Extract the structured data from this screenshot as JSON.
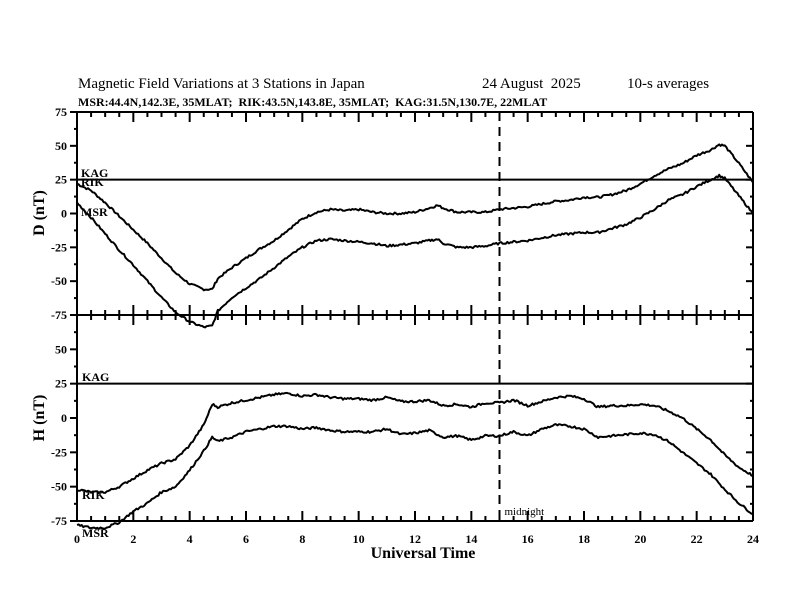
{
  "chart_data": [
    {
      "type": "line",
      "panel": "D",
      "title": "Magnetic Field Variations at 3 Stations in Japan",
      "date": "24 August  2025",
      "averaging": "10-s averages",
      "subtitle": "MSR:44.4N,142.3E, 35MLAT;  RIK:43.5N,143.8E, 35MLAT;  KAG:31.5N,130.7E, 22MLAT",
      "ylabel": "D (nT)",
      "xlabel": "Universal Time",
      "xlim": [
        0,
        24
      ],
      "ylim": [
        -75,
        75
      ],
      "yticks": [
        "75",
        "50",
        "25",
        "0",
        "-25",
        "-50",
        "-75"
      ],
      "yticks_values": [
        75,
        50,
        25,
        0,
        -25,
        -50,
        -75
      ],
      "series": [
        {
          "name": "KAG",
          "x": [
            0,
            24
          ],
          "values": [
            25,
            25
          ]
        },
        {
          "name": "RIK",
          "x": [
            0,
            0.5,
            1,
            1.5,
            2,
            2.5,
            3,
            3.5,
            4,
            4.5,
            4.8,
            5,
            5.5,
            6,
            6.5,
            7,
            7.5,
            8,
            8.5,
            9,
            9.5,
            10,
            10.5,
            11,
            11.5,
            12,
            12.5,
            12.8,
            13,
            13.5,
            14,
            14.5,
            15,
            15.5,
            16,
            16.5,
            17,
            17.5,
            18,
            18.5,
            19,
            19.5,
            20,
            20.5,
            21,
            21.5,
            22,
            22.5,
            22.8,
            23,
            23.5,
            24
          ],
          "values": [
            22,
            17,
            8,
            -2,
            -12,
            -22,
            -33,
            -44,
            -52,
            -56,
            -56,
            -48,
            -40,
            -33,
            -26,
            -20,
            -12,
            -4,
            1,
            3,
            2,
            3,
            1,
            0,
            0,
            1,
            4,
            6,
            4,
            1,
            1,
            1,
            3,
            4,
            5,
            7,
            9,
            10,
            12,
            12,
            14,
            17,
            22,
            28,
            33,
            37,
            43,
            47,
            51,
            50,
            37,
            23
          ]
        },
        {
          "name": "MSR",
          "x": [
            0,
            0.5,
            1,
            1.5,
            2,
            2.5,
            3,
            3.5,
            4,
            4.5,
            4.8,
            5,
            5.5,
            6,
            6.5,
            7,
            7.5,
            8,
            8.5,
            9,
            9.5,
            10,
            10.5,
            11,
            11.5,
            12,
            12.5,
            12.8,
            13,
            13.5,
            14,
            14.5,
            15,
            15.5,
            16,
            16.5,
            17,
            17.5,
            18,
            18.5,
            19,
            19.5,
            20,
            20.5,
            21,
            21.5,
            22,
            22.5,
            22.8,
            23,
            23.5,
            24
          ],
          "values": [
            8,
            -3,
            -15,
            -27,
            -38,
            -50,
            -62,
            -73,
            -80,
            -84,
            -83,
            -72,
            -62,
            -55,
            -48,
            -40,
            -32,
            -25,
            -20,
            -19,
            -20,
            -21,
            -22,
            -24,
            -23,
            -22,
            -20,
            -19,
            -22,
            -25,
            -25,
            -24,
            -22,
            -21,
            -20,
            -18,
            -16,
            -15,
            -14,
            -14,
            -11,
            -8,
            -3,
            3,
            10,
            14,
            20,
            25,
            28,
            26,
            13,
            0
          ]
        }
      ],
      "labels": [
        "KAG",
        "RIK",
        "MSR"
      ],
      "annotations": [
        {
          "type": "vline",
          "x": 15,
          "style": "dashed"
        }
      ]
    },
    {
      "type": "line",
      "panel": "H",
      "ylabel": "H (nT)",
      "xlabel": "Universal Time",
      "xlim": [
        0,
        24
      ],
      "ylim": [
        -75,
        75
      ],
      "xticks": [
        "0",
        "2",
        "4",
        "6",
        "8",
        "10",
        "12",
        "14",
        "16",
        "18",
        "20",
        "22",
        "24"
      ],
      "xticks_values": [
        0,
        2,
        4,
        6,
        8,
        10,
        12,
        14,
        16,
        18,
        20,
        22,
        24
      ],
      "yticks": [
        "50",
        "25",
        "0",
        "-25",
        "-50",
        "-75"
      ],
      "yticks_values": [
        50,
        25,
        0,
        -25,
        -50,
        -75
      ],
      "series": [
        {
          "name": "KAG",
          "x": [
            0,
            24
          ],
          "values": [
            25,
            25
          ]
        },
        {
          "name": "RIK",
          "x": [
            0,
            0.5,
            1,
            1.5,
            2,
            2.5,
            3,
            3.5,
            4,
            4.5,
            4.8,
            5,
            5.5,
            6,
            6.5,
            7,
            7.5,
            8,
            8.5,
            9,
            9.5,
            10,
            10.5,
            11,
            11.5,
            12,
            12.5,
            13,
            13.5,
            14,
            14.5,
            15,
            15.5,
            16,
            16.5,
            17,
            17.5,
            18,
            18.5,
            19,
            19.5,
            20,
            20.5,
            21,
            21.5,
            22,
            22.5,
            23,
            23.5,
            24
          ],
          "values": [
            -52,
            -54,
            -54,
            -50,
            -44,
            -38,
            -33,
            -30,
            -20,
            -5,
            10,
            8,
            11,
            13,
            15,
            17,
            18,
            16,
            17,
            15,
            14,
            14,
            13,
            15,
            12,
            12,
            13,
            9,
            10,
            8,
            11,
            11,
            13,
            9,
            12,
            15,
            16,
            14,
            8,
            9,
            9,
            10,
            9,
            5,
            0,
            -8,
            -16,
            -27,
            -36,
            -42
          ]
        },
        {
          "name": "MSR",
          "x": [
            0,
            0.5,
            1,
            1.5,
            2,
            2.5,
            3,
            3.5,
            4,
            4.5,
            4.8,
            5,
            5.5,
            6,
            6.5,
            7,
            7.5,
            8,
            8.5,
            9,
            9.5,
            10,
            10.5,
            11,
            11.5,
            12,
            12.5,
            13,
            13.5,
            14,
            14.5,
            15,
            15.5,
            16,
            16.5,
            17,
            17.5,
            18,
            18.5,
            19,
            19.5,
            20,
            20.5,
            21,
            21.5,
            22,
            22.5,
            23,
            23.5,
            24
          ],
          "values": [
            -78,
            -80,
            -80,
            -76,
            -68,
            -62,
            -54,
            -50,
            -38,
            -24,
            -14,
            -17,
            -14,
            -10,
            -8,
            -6,
            -6,
            -8,
            -7,
            -9,
            -10,
            -10,
            -10,
            -8,
            -12,
            -11,
            -9,
            -14,
            -13,
            -16,
            -13,
            -13,
            -10,
            -13,
            -8,
            -5,
            -6,
            -8,
            -14,
            -13,
            -12,
            -11,
            -12,
            -17,
            -25,
            -33,
            -41,
            -52,
            -62,
            -70
          ]
        }
      ],
      "labels": [
        "KAG",
        "RIK",
        "MSR"
      ],
      "annotations": [
        {
          "type": "vline",
          "x": 15,
          "style": "dashed",
          "text": "midnight"
        }
      ]
    }
  ]
}
